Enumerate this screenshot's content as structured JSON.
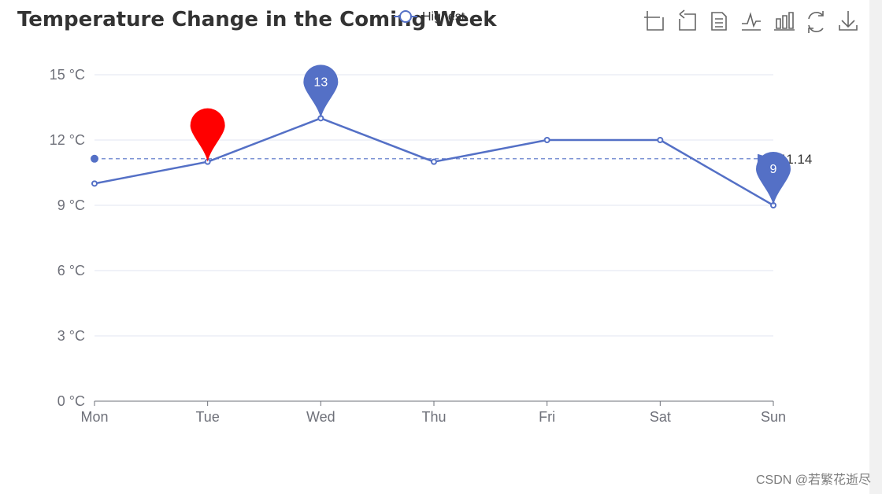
{
  "chart_data": {
    "type": "line",
    "title": "Temperature Change in the Coming Week",
    "categories": [
      "Mon",
      "Tue",
      "Wed",
      "Thu",
      "Fri",
      "Sat",
      "Sun"
    ],
    "series": [
      {
        "name": "Highest",
        "values": [
          10,
          11,
          13,
          11,
          12,
          12,
          9
        ],
        "color": "#5470c6"
      }
    ],
    "ylim": [
      0,
      15
    ],
    "yticks": [
      0,
      3,
      6,
      9,
      12,
      15
    ],
    "ytick_labels": [
      "0 °C",
      "3 °C",
      "6 °C",
      "9 °C",
      "12 °C",
      "15 °C"
    ],
    "grid": true,
    "legend_position": "top",
    "mark_points": [
      {
        "category": "Tue",
        "value": 11,
        "label": "",
        "color": "#ff0000"
      },
      {
        "category": "Wed",
        "value": 13,
        "label": "13",
        "color": "#5470c6"
      },
      {
        "category": "Sun",
        "value": 9,
        "label": "9",
        "color": "#5470c6"
      }
    ],
    "average_line": {
      "value": 11.14,
      "label": "11.14"
    }
  },
  "toolbox": [
    "zoom-icon",
    "zoom-reset-icon",
    "data-view-icon",
    "line-chart-icon",
    "bar-chart-icon",
    "restore-icon",
    "download-icon"
  ],
  "watermark": "CSDN @若繁花逝尽"
}
